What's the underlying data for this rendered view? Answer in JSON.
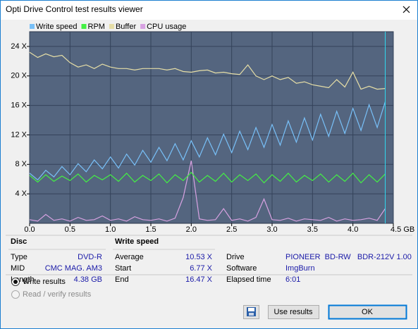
{
  "window": {
    "title": "Opti Drive Control test results viewer"
  },
  "chart_data": {
    "type": "line",
    "legend": "top",
    "x": [
      0.0,
      0.1,
      0.2,
      0.3,
      0.4,
      0.5,
      0.6,
      0.7,
      0.8,
      0.9,
      1.0,
      1.1,
      1.2,
      1.3,
      1.4,
      1.5,
      1.6,
      1.7,
      1.8,
      1.9,
      2.0,
      2.1,
      2.2,
      2.3,
      2.4,
      2.5,
      2.6,
      2.7,
      2.8,
      2.9,
      3.0,
      3.1,
      3.2,
      3.3,
      3.4,
      3.5,
      3.6,
      3.7,
      3.8,
      3.9,
      4.0,
      4.1,
      4.2,
      4.3,
      4.4
    ],
    "series": [
      {
        "name": "Write speed",
        "color": "#78c0f8",
        "values": [
          6.8,
          5.9,
          7.2,
          6.3,
          7.7,
          6.6,
          8.1,
          7.0,
          8.6,
          7.4,
          9.0,
          7.5,
          9.4,
          7.9,
          9.9,
          8.3,
          10.3,
          8.5,
          10.8,
          8.6,
          11.2,
          9.0,
          11.6,
          9.3,
          12.1,
          9.6,
          12.5,
          10.0,
          13.0,
          10.3,
          13.4,
          10.6,
          13.9,
          11.0,
          14.3,
          11.3,
          14.8,
          11.8,
          15.2,
          12.2,
          15.6,
          12.6,
          16.1,
          13.0,
          16.5
        ]
      },
      {
        "name": "RPM",
        "color": "#44f044",
        "values": [
          6.5,
          5.6,
          6.6,
          5.7,
          6.4,
          5.8,
          6.7,
          5.6,
          6.5,
          5.9,
          6.6,
          5.7,
          6.8,
          5.6,
          6.5,
          5.8,
          6.7,
          5.5,
          6.6,
          5.8,
          6.9,
          5.6,
          6.5,
          5.7,
          6.8,
          5.6,
          6.6,
          5.8,
          6.7,
          5.5,
          6.6,
          5.7,
          6.8,
          5.6,
          6.5,
          5.8,
          6.7,
          5.6,
          6.6,
          5.7,
          6.8,
          5.5,
          6.6,
          5.6,
          6.7
        ]
      },
      {
        "name": "Buffer",
        "color": "#e6dea6",
        "values": [
          23.2,
          22.5,
          23.0,
          22.6,
          22.8,
          21.8,
          21.2,
          21.5,
          21.0,
          21.6,
          21.2,
          21.0,
          21.0,
          20.8,
          21.0,
          21.0,
          21.0,
          20.8,
          21.0,
          20.6,
          20.5,
          20.7,
          20.8,
          20.4,
          20.5,
          20.3,
          20.2,
          21.5,
          20.0,
          19.5,
          20.0,
          19.5,
          19.8,
          19.0,
          19.2,
          18.8,
          18.6,
          18.4,
          19.5,
          18.5,
          20.5,
          18.2,
          18.6,
          18.2,
          18.3
        ]
      },
      {
        "name": "CPU usage",
        "color": "#d8a2e2",
        "values": [
          0.5,
          0.3,
          1.2,
          0.4,
          0.6,
          0.3,
          0.8,
          0.4,
          0.5,
          1.0,
          0.4,
          0.6,
          0.3,
          0.9,
          0.5,
          0.4,
          0.6,
          0.3,
          0.7,
          3.5,
          8.5,
          0.6,
          0.4,
          0.5,
          2.0,
          0.4,
          0.6,
          0.3,
          0.8,
          3.3,
          0.5,
          0.4,
          0.7,
          0.3,
          0.6,
          0.5,
          0.4,
          0.8,
          0.3,
          0.6,
          0.4,
          0.5,
          0.7,
          0.4,
          2.0
        ]
      }
    ],
    "xlim": [
      0,
      4.5
    ],
    "ylim": [
      0,
      26
    ],
    "xticks": [
      {
        "value": 0,
        "label": "0.0"
      },
      0.5,
      {
        "value": 1,
        "label": "1.0"
      },
      1.5,
      {
        "value": 2,
        "label": "2.0"
      },
      2.5,
      {
        "value": 3,
        "label": "3.0"
      },
      3.5,
      {
        "value": 4,
        "label": "4.0"
      },
      {
        "value": 4.5,
        "label": "4.5 GB"
      }
    ],
    "yticks": [
      {
        "value": 4,
        "label": "4 X"
      },
      {
        "value": 8,
        "label": "8 X"
      },
      {
        "value": 12,
        "label": "12 X"
      },
      {
        "value": 16,
        "label": "16 X"
      },
      {
        "value": 20,
        "label": "20 X"
      },
      {
        "value": 24,
        "label": "24 X"
      }
    ],
    "grid": true
  },
  "disc": {
    "title": "Disc",
    "rows": [
      [
        "Type",
        "DVD-R"
      ],
      [
        "MID",
        "CMC MAG. AM3"
      ],
      [
        "Length",
        "4.38 GB"
      ]
    ]
  },
  "write_speed": {
    "title": "Write speed",
    "rows": [
      [
        "Average",
        "10.53 X"
      ],
      [
        "Start",
        "6.77 X"
      ],
      [
        "End",
        "16.47 X"
      ]
    ]
  },
  "drive_info": {
    "rows": [
      [
        "Drive",
        "PIONEER  BD-RW   BDR-212V 1.00"
      ],
      [
        "Software",
        "ImgBurn"
      ],
      [
        "Elapsed time",
        "6:01"
      ]
    ]
  },
  "options": [
    "Write results",
    "Read / verify results"
  ],
  "buttons": [
    "Use results",
    "OK"
  ]
}
